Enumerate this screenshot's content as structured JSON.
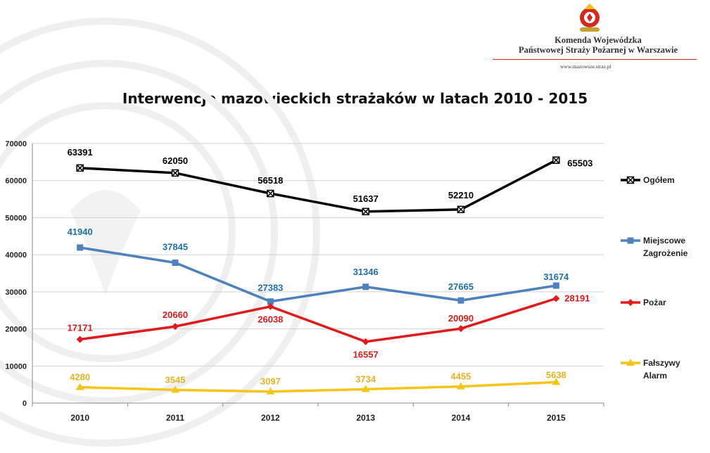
{
  "header": {
    "org_line1": "Komenda Wojewódzka",
    "org_line2": "Państwowej Straży Pożarnej w Warszawie",
    "url": "www.mazowsze.straz.pl"
  },
  "chart_data": {
    "type": "line",
    "title": "Interwencje mazowieckich strażaków w latach 2010 - 2015",
    "categories": [
      "2010",
      "2011",
      "2012",
      "2013",
      "2014",
      "2015"
    ],
    "ylim": [
      0,
      70000
    ],
    "yticks": [
      0,
      10000,
      20000,
      30000,
      40000,
      50000,
      60000,
      70000
    ],
    "ytick_labels": [
      "0",
      "10000",
      "20000",
      "30000",
      "40000",
      "50000",
      "60000",
      "70000"
    ],
    "grid": true,
    "legend_position": "right",
    "series": [
      {
        "name": "Ogółem",
        "legend_lines": [
          "Ogółem"
        ],
        "color": "#000000",
        "label_color": "#000000",
        "marker": "x-square",
        "values": [
          63391,
          62050,
          56518,
          51637,
          52210,
          65503
        ]
      },
      {
        "name": "Miejscowe Zagrożenie",
        "legend_lines": [
          "Miejscowe",
          "Zagrożenie"
        ],
        "color": "#4f81bd",
        "label_color": "#1f6fa8",
        "marker": "square",
        "values": [
          41940,
          37845,
          27383,
          31346,
          27665,
          31674
        ]
      },
      {
        "name": "Pożar",
        "legend_lines": [
          "Pożar"
        ],
        "color": "#e31a1c",
        "label_color": "#d81b1b",
        "marker": "diamond",
        "values": [
          17171,
          20660,
          26038,
          16557,
          20090,
          28191
        ]
      },
      {
        "name": "Fałszywy Alarm",
        "legend_lines": [
          "Fałszywy",
          "Alarm"
        ],
        "color": "#f5c518",
        "label_color": "#e6b422",
        "marker": "triangle",
        "values": [
          4280,
          3545,
          3097,
          3734,
          4455,
          5638
        ]
      }
    ]
  }
}
